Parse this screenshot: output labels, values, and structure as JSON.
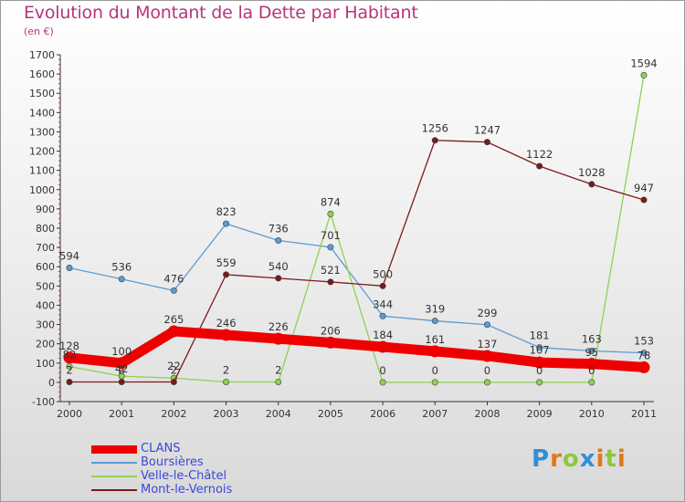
{
  "title": "Evolution du Montant de la Dette par Habitant",
  "subtitle": "(en €)",
  "logo": {
    "text": "Proxiti",
    "letters": [
      "P",
      "r",
      "o",
      "x",
      "i",
      "t",
      "i"
    ],
    "colors": [
      "#2f8fd8",
      "#e0791b",
      "#8fc63f",
      "#2f8fd8",
      "#e0791b",
      "#8fc63f",
      "#e0791b"
    ]
  },
  "chart_data": {
    "type": "line",
    "title": "Evolution du Montant de la Dette par Habitant",
    "subtitle": "(en €)",
    "x": [
      "2000",
      "2001",
      "2002",
      "2003",
      "2004",
      "2005",
      "2006",
      "2007",
      "2008",
      "2009",
      "2010",
      "2011"
    ],
    "ylim": [
      -100,
      1700
    ],
    "yticks": [
      -100,
      0,
      100,
      200,
      300,
      400,
      500,
      600,
      700,
      800,
      900,
      1000,
      1100,
      1200,
      1300,
      1400,
      1500,
      1600,
      1700
    ],
    "grid": false,
    "legend_position": "bottom-left",
    "series": [
      {
        "name": "CLANS",
        "color": "#ee0000",
        "values": [
          128,
          100,
          265,
          246,
          226,
          206,
          184,
          161,
          137,
          103,
          96,
          78
        ],
        "labels": [
          "128",
          "100",
          "265",
          "246",
          "226",
          "206",
          "184",
          "161",
          "137",
          "",
          "",
          ""
        ],
        "emphasis": true
      },
      {
        "name": "Boursières",
        "color": "#5b9bd5",
        "values": [
          594,
          536,
          476,
          823,
          736,
          701,
          344,
          319,
          299,
          181,
          163,
          153
        ],
        "labels": [
          "594",
          "536",
          "476",
          "823",
          "736",
          "701",
          "344",
          "319",
          "299",
          "181",
          "163",
          "153"
        ]
      },
      {
        "name": "Velle-le-Châtel",
        "color": "#8fd14f",
        "values": [
          82,
          32,
          22,
          2,
          2,
          874,
          0,
          0,
          0,
          0,
          0,
          1594
        ],
        "labels": [
          "82",
          "",
          "22",
          "2",
          "2",
          "874",
          "0",
          "0",
          "0",
          "0",
          "0",
          "1594"
        ]
      },
      {
        "name": "Mont-le-Vernois",
        "color": "#7a1a1a",
        "values": [
          2,
          2,
          2,
          559,
          540,
          521,
          500,
          1256,
          1247,
          1122,
          1028,
          947
        ],
        "labels": [
          "2",
          "2",
          "2",
          "559",
          "540",
          "521",
          "500",
          "1256",
          "1247",
          "1122",
          "1028",
          "947"
        ]
      }
    ],
    "extra_labels": [
      "42",
      "107",
      "95",
      "78"
    ]
  }
}
